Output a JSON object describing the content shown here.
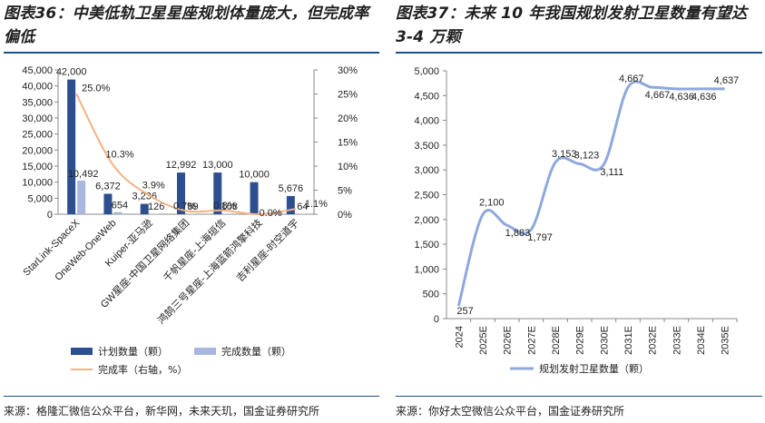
{
  "left_panel": {
    "title": "图表36：中美低轨卫星星座规划体量庞大，但完成率偏低",
    "source": "来源：格隆汇微信公众平台，新华网，未来天玑，国金证券研究所"
  },
  "right_panel": {
    "title": "图表37：未来 10 年我国规划发射卫星数量有望达 3-4 万颗",
    "source": "来源：你好太空微信公众平台，国金证券研究所"
  },
  "chart_data": [
    {
      "type": "bar",
      "categories": [
        "StarLink-SpaceX",
        "OneWeb-OneWeb",
        "Kuiper-亚马逊",
        "GW星座-中国卫星网络集团",
        "千帆星座-上海垣信",
        "鸿鹄三号星座-上海蓝箭鸿擎科技",
        "吉利星座-时空道宇"
      ],
      "series": [
        {
          "name": "计划数量（颗）",
          "values": [
            42000,
            6372,
            3236,
            12992,
            13000,
            10000,
            5676
          ],
          "labels": [
            "42,000",
            "6,372",
            "3,236",
            "12,992",
            "13,000",
            "10,000",
            "5,676"
          ],
          "color": "#2e4f8f"
        },
        {
          "name": "完成数量（颗）",
          "values": [
            10492,
            654,
            126,
            89,
            108,
            0,
            64
          ],
          "labels": [
            "10,492",
            "654",
            "126",
            "89",
            "108",
            "",
            "64"
          ],
          "color": "#a8b7dd"
        },
        {
          "name": "完成率（右轴，%）",
          "values": [
            25.0,
            10.3,
            3.9,
            0.7,
            0.8,
            0.0,
            1.1
          ],
          "labels": [
            "25.0%",
            "10.3%",
            "3.9%",
            "0.7%",
            "0.8%",
            "0.0%",
            "1.1%"
          ],
          "color": "#f4b183",
          "axis": "right"
        }
      ],
      "ylim": [
        0,
        45000
      ],
      "yticks": [
        "0",
        "5,000",
        "10,000",
        "15,000",
        "20,000",
        "25,000",
        "30,000",
        "35,000",
        "40,000",
        "45,000"
      ],
      "y2lim": [
        0,
        30
      ],
      "y2ticks": [
        "0%",
        "5%",
        "10%",
        "15%",
        "20%",
        "25%",
        "30%"
      ],
      "legend_position": "bottom"
    },
    {
      "type": "line",
      "x": [
        "2024",
        "2025E",
        "2026E",
        "2027E",
        "2028E",
        "2029E",
        "2030E",
        "2031E",
        "2032E",
        "2033E",
        "2034E",
        "2035E"
      ],
      "series": [
        {
          "name": "规划发射卫星数量（颗）",
          "values": [
            257,
            2100,
            1883,
            1797,
            3153,
            3123,
            3111,
            4667,
            4667,
            4636,
            4636,
            4637
          ],
          "labels": [
            "257",
            "2,100",
            "1,883",
            "1,797",
            "3,153",
            "3,123",
            "3,111",
            "4,667",
            "4,667",
            "4,636",
            "4,636",
            "4,637"
          ],
          "color": "#8fa8dc"
        }
      ],
      "ylim": [
        0,
        5000
      ],
      "yticks": [
        "0",
        "500",
        "1,000",
        "1,500",
        "2,000",
        "2,500",
        "3,000",
        "3,500",
        "4,000",
        "4,500",
        "5,000"
      ],
      "legend_position": "bottom"
    }
  ]
}
